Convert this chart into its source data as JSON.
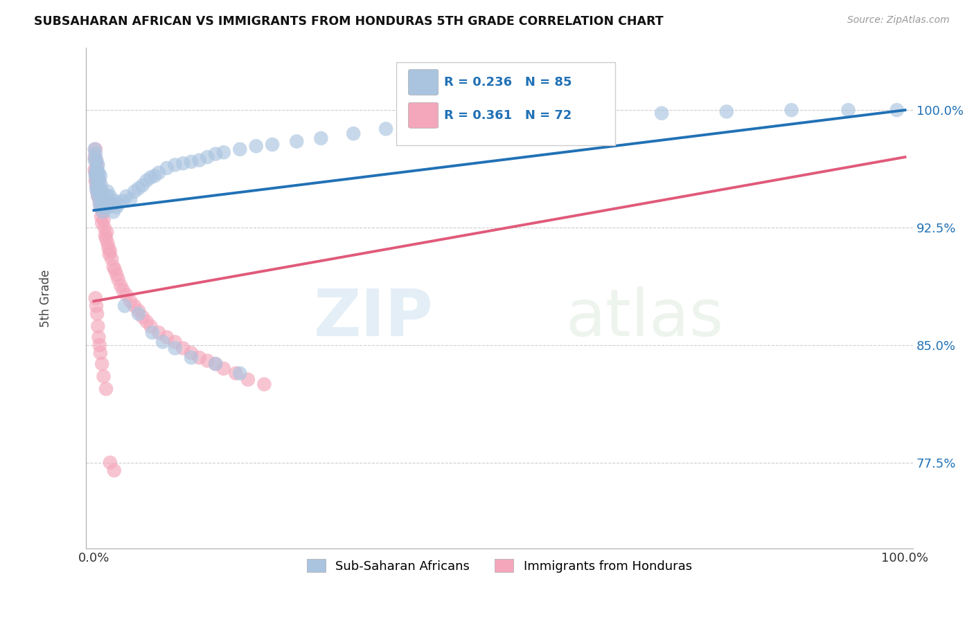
{
  "title": "SUBSAHARAN AFRICAN VS IMMIGRANTS FROM HONDURAS 5TH GRADE CORRELATION CHART",
  "source": "Source: ZipAtlas.com",
  "ylabel": "5th Grade",
  "xlabel": "",
  "xlim": [
    0.0,
    1.0
  ],
  "ylim": [
    0.72,
    1.04
  ],
  "yticks": [
    0.775,
    0.85,
    0.925,
    1.0
  ],
  "ytick_labels": [
    "77.5%",
    "85.0%",
    "92.5%",
    "100.0%"
  ],
  "xticks": [
    0.0,
    1.0
  ],
  "xtick_labels": [
    "0.0%",
    "100.0%"
  ],
  "blue_R": 0.236,
  "blue_N": 85,
  "pink_R": 0.361,
  "pink_N": 72,
  "blue_color": "#aac4e0",
  "pink_color": "#f4a7bb",
  "blue_line_color": "#2171b5",
  "pink_line_color": "#e05a7a",
  "legend1_label": "Sub-Saharan Africans",
  "legend2_label": "Immigrants from Honduras",
  "watermark_zip": "ZIP",
  "watermark_atlas": "atlas",
  "blue_scatter_x": [
    0.001,
    0.001,
    0.002,
    0.002,
    0.002,
    0.003,
    0.003,
    0.003,
    0.003,
    0.004,
    0.004,
    0.004,
    0.005,
    0.005,
    0.005,
    0.006,
    0.006,
    0.007,
    0.007,
    0.007,
    0.008,
    0.008,
    0.009,
    0.009,
    0.01,
    0.01,
    0.011,
    0.011,
    0.012,
    0.013,
    0.014,
    0.015,
    0.016,
    0.017,
    0.018,
    0.019,
    0.02,
    0.022,
    0.024,
    0.026,
    0.028,
    0.03,
    0.035,
    0.04,
    0.045,
    0.05,
    0.055,
    0.06,
    0.065,
    0.07,
    0.075,
    0.08,
    0.09,
    0.1,
    0.11,
    0.12,
    0.13,
    0.14,
    0.15,
    0.16,
    0.18,
    0.2,
    0.22,
    0.25,
    0.28,
    0.32,
    0.36,
    0.4,
    0.45,
    0.5,
    0.56,
    0.62,
    0.7,
    0.78,
    0.86,
    0.93,
    0.99,
    0.038,
    0.055,
    0.072,
    0.085,
    0.1,
    0.12,
    0.15,
    0.18
  ],
  "blue_scatter_y": [
    0.975,
    0.968,
    0.972,
    0.96,
    0.958,
    0.968,
    0.963,
    0.955,
    0.95,
    0.96,
    0.952,
    0.948,
    0.965,
    0.958,
    0.945,
    0.96,
    0.95,
    0.955,
    0.948,
    0.94,
    0.958,
    0.945,
    0.952,
    0.94,
    0.948,
    0.938,
    0.945,
    0.935,
    0.942,
    0.94,
    0.938,
    0.942,
    0.945,
    0.948,
    0.938,
    0.942,
    0.945,
    0.94,
    0.935,
    0.942,
    0.938,
    0.94,
    0.942,
    0.945,
    0.943,
    0.948,
    0.95,
    0.952,
    0.955,
    0.957,
    0.958,
    0.96,
    0.963,
    0.965,
    0.966,
    0.967,
    0.968,
    0.97,
    0.972,
    0.973,
    0.975,
    0.977,
    0.978,
    0.98,
    0.982,
    0.985,
    0.988,
    0.99,
    0.992,
    0.994,
    0.996,
    0.997,
    0.998,
    0.999,
    1.0,
    1.0,
    1.0,
    0.875,
    0.87,
    0.858,
    0.852,
    0.848,
    0.842,
    0.838,
    0.832
  ],
  "pink_scatter_x": [
    0.001,
    0.001,
    0.002,
    0.002,
    0.002,
    0.003,
    0.003,
    0.003,
    0.004,
    0.004,
    0.004,
    0.005,
    0.005,
    0.005,
    0.006,
    0.006,
    0.007,
    0.007,
    0.008,
    0.008,
    0.009,
    0.009,
    0.01,
    0.01,
    0.011,
    0.012,
    0.013,
    0.014,
    0.015,
    0.016,
    0.017,
    0.018,
    0.019,
    0.02,
    0.022,
    0.024,
    0.026,
    0.028,
    0.03,
    0.033,
    0.036,
    0.04,
    0.045,
    0.05,
    0.055,
    0.06,
    0.065,
    0.07,
    0.08,
    0.09,
    0.1,
    0.11,
    0.12,
    0.13,
    0.14,
    0.15,
    0.16,
    0.175,
    0.19,
    0.21,
    0.002,
    0.003,
    0.004,
    0.005,
    0.006,
    0.007,
    0.008,
    0.01,
    0.012,
    0.015,
    0.02,
    0.025
  ],
  "pink_scatter_y": [
    0.97,
    0.962,
    0.975,
    0.96,
    0.955,
    0.968,
    0.958,
    0.952,
    0.965,
    0.955,
    0.948,
    0.96,
    0.952,
    0.945,
    0.955,
    0.948,
    0.95,
    0.942,
    0.948,
    0.938,
    0.942,
    0.932,
    0.938,
    0.928,
    0.935,
    0.93,
    0.925,
    0.92,
    0.918,
    0.922,
    0.915,
    0.912,
    0.908,
    0.91,
    0.905,
    0.9,
    0.898,
    0.895,
    0.892,
    0.888,
    0.885,
    0.882,
    0.878,
    0.875,
    0.872,
    0.868,
    0.865,
    0.862,
    0.858,
    0.855,
    0.852,
    0.848,
    0.845,
    0.842,
    0.84,
    0.838,
    0.835,
    0.832,
    0.828,
    0.825,
    0.88,
    0.875,
    0.87,
    0.862,
    0.855,
    0.85,
    0.845,
    0.838,
    0.83,
    0.822,
    0.775,
    0.77
  ]
}
